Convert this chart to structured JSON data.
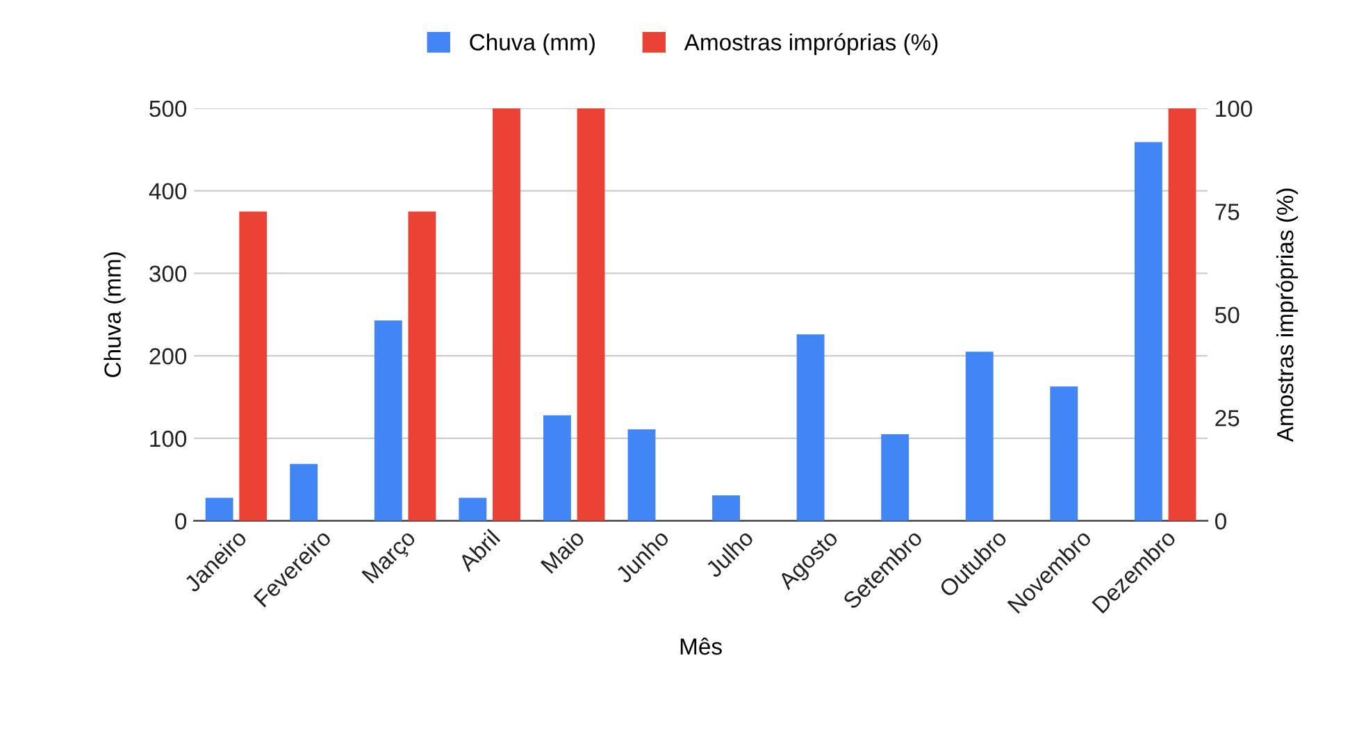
{
  "chart_data": {
    "type": "bar",
    "xlabel": "Mês",
    "ylabel": "Chuva (mm)",
    "y2label": "Amostras impróprias (%)",
    "categories": [
      "Janeiro",
      "Fevereiro",
      "Março",
      "Abril",
      "Maio",
      "Junho",
      "Julho",
      "Agosto",
      "Setembro",
      "Outubro",
      "Novembro",
      "Dezembro"
    ],
    "series": [
      {
        "name": "Chuva (mm)",
        "color": "#4285f4",
        "values": [
          28,
          69,
          243,
          28,
          128,
          111,
          31,
          226,
          105,
          205,
          163,
          459
        ]
      },
      {
        "name": "Amostras impróprias (%)",
        "color": "#ea4335",
        "axis": "y2",
        "values": [
          75,
          null,
          75,
          100,
          100,
          null,
          null,
          null,
          null,
          null,
          null,
          100
        ]
      }
    ],
    "ylim": [
      0,
      500
    ],
    "yticks": [
      0,
      100,
      200,
      300,
      400,
      500
    ],
    "y2lim": [
      0,
      100
    ],
    "y2ticks": [
      0,
      25,
      50,
      75,
      100
    ],
    "grid": "y",
    "legend": "top"
  }
}
